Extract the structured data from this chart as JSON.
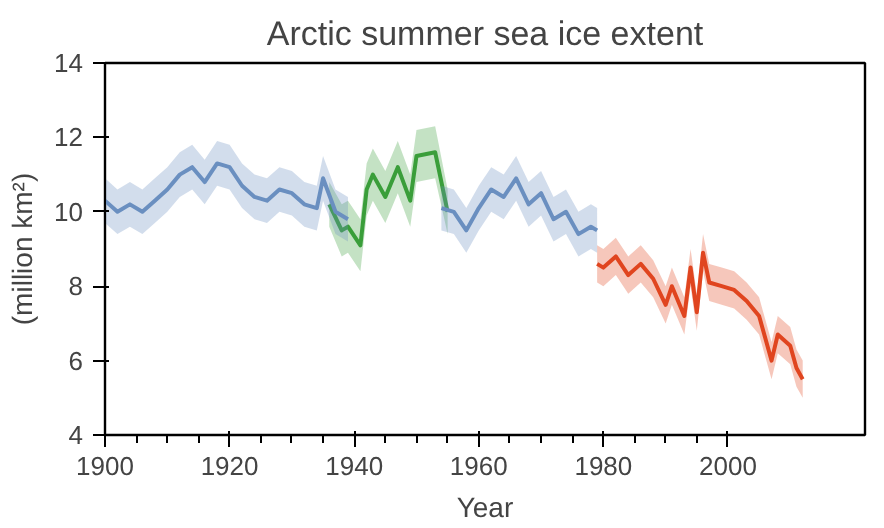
{
  "chart_data": {
    "type": "line",
    "title": "Arctic summer sea ice extent",
    "xlabel": "Year",
    "ylabel": "(million km²)",
    "xlim": [
      1900,
      2022
    ],
    "xticks": [
      1900,
      1920,
      1940,
      1960,
      1980,
      2000
    ],
    "ylim": [
      4,
      14
    ],
    "yticks": [
      4,
      6,
      8,
      10,
      12,
      14
    ],
    "grid": false,
    "series": [
      {
        "color": "#3a9e3a",
        "x": [
          1936,
          1938,
          1939,
          1941,
          1942,
          1943,
          1945,
          1947,
          1949,
          1950,
          1953,
          1955
        ],
        "values": [
          10.2,
          9.5,
          9.6,
          9.1,
          10.6,
          11.0,
          10.4,
          11.2,
          10.3,
          11.5,
          11.6,
          10.0
        ],
        "lower": [
          9.6,
          8.8,
          8.9,
          8.4,
          9.9,
          10.3,
          9.7,
          10.5,
          9.6,
          10.8,
          10.9,
          9.4
        ],
        "upper": [
          10.8,
          10.2,
          10.3,
          9.8,
          11.3,
          11.7,
          11.1,
          11.9,
          11.0,
          12.2,
          12.3,
          10.6
        ]
      },
      {
        "color": "#6a8fc0",
        "x": [
          1900,
          1902,
          1904,
          1906,
          1908,
          1910,
          1912,
          1914,
          1916,
          1918,
          1920,
          1922,
          1924,
          1926,
          1928,
          1930,
          1932,
          1934,
          1935,
          1937,
          1939,
          1946,
          1954,
          1956,
          1958,
          1960,
          1962,
          1964,
          1966,
          1968,
          1970,
          1972,
          1974,
          1976,
          1978,
          1979
        ],
        "values": [
          10.3,
          10.0,
          10.2,
          10.0,
          10.3,
          10.6,
          11.0,
          11.2,
          10.8,
          11.3,
          11.2,
          10.7,
          10.4,
          10.3,
          10.6,
          10.5,
          10.2,
          10.1,
          10.9,
          10.0,
          9.8,
          null,
          10.1,
          10.0,
          9.5,
          10.1,
          10.6,
          10.4,
          10.9,
          10.2,
          10.5,
          9.8,
          10.0,
          9.4,
          9.6,
          9.5
        ],
        "lower": [
          9.7,
          9.4,
          9.6,
          9.4,
          9.7,
          10.0,
          10.4,
          10.6,
          10.2,
          10.7,
          10.6,
          10.1,
          9.8,
          9.7,
          10.0,
          9.9,
          9.6,
          9.5,
          10.3,
          9.4,
          9.2,
          null,
          9.5,
          9.4,
          8.9,
          9.5,
          10.0,
          9.8,
          10.3,
          9.6,
          9.9,
          9.2,
          9.4,
          8.8,
          9.0,
          8.9
        ],
        "upper": [
          10.9,
          10.6,
          10.8,
          10.6,
          10.9,
          11.2,
          11.6,
          11.8,
          11.4,
          11.9,
          11.8,
          11.3,
          11.0,
          10.9,
          11.2,
          11.1,
          10.8,
          10.7,
          11.5,
          10.6,
          10.4,
          null,
          10.7,
          10.6,
          10.1,
          10.7,
          11.2,
          11.0,
          11.5,
          10.8,
          11.1,
          10.4,
          10.6,
          10.0,
          10.2,
          10.1
        ]
      },
      {
        "color": "#e0451f",
        "x": [
          1979,
          1980,
          1982,
          1984,
          1986,
          1988,
          1990,
          1991,
          1993,
          1994,
          1995,
          1996,
          1997,
          1999,
          2001,
          2003,
          2005,
          2007,
          2008,
          2010,
          2011,
          2012
        ],
        "values": [
          8.6,
          8.5,
          8.8,
          8.3,
          8.6,
          8.2,
          7.5,
          8.0,
          7.2,
          8.5,
          7.3,
          8.9,
          8.1,
          8.0,
          7.9,
          7.6,
          7.2,
          6.0,
          6.7,
          6.4,
          5.8,
          5.5
        ],
        "lower": [
          8.1,
          8.0,
          8.3,
          7.8,
          8.1,
          7.7,
          7.0,
          7.5,
          6.7,
          8.0,
          6.8,
          8.4,
          7.6,
          7.5,
          7.4,
          7.1,
          6.7,
          5.5,
          6.2,
          5.9,
          5.3,
          5.0
        ],
        "upper": [
          9.1,
          9.0,
          9.3,
          8.8,
          9.1,
          8.7,
          8.0,
          8.5,
          7.7,
          9.0,
          7.8,
          9.4,
          8.6,
          8.5,
          8.4,
          8.1,
          7.7,
          6.5,
          7.2,
          6.9,
          6.3,
          6.0
        ]
      }
    ]
  }
}
